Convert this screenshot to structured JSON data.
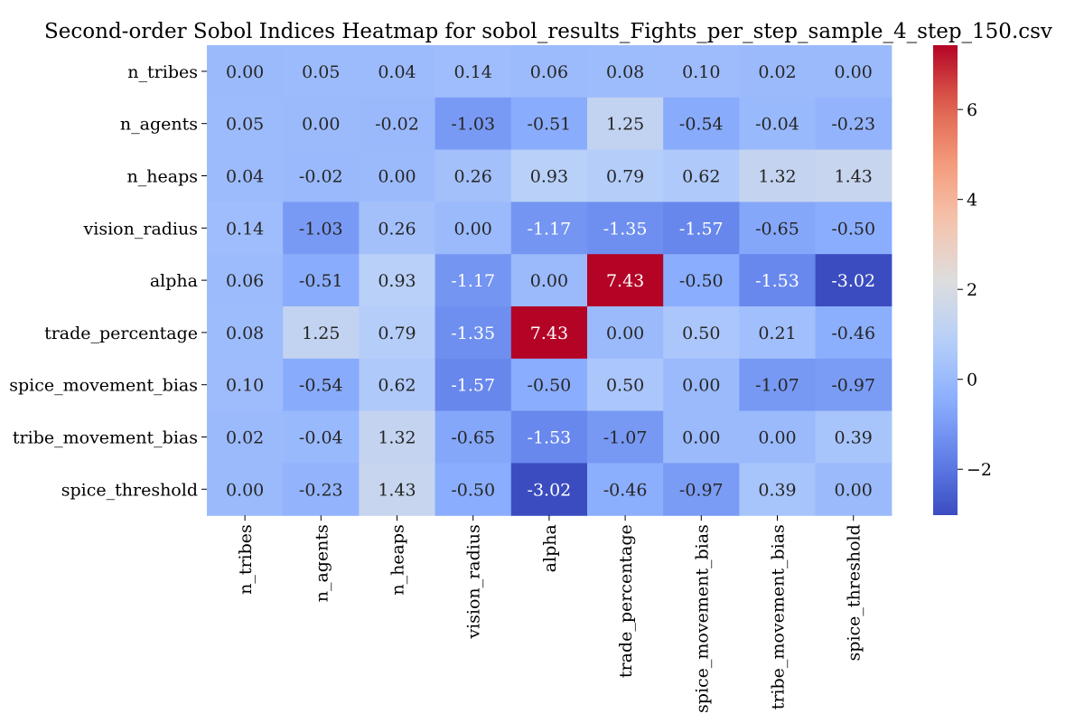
{
  "chart_data": {
    "type": "heatmap",
    "title": "Second-order Sobol Indices Heatmap for sobol_results_Fights_per_step_sample_4_step_150.csv",
    "row_labels": [
      "n_tribes",
      "n_agents",
      "n_heaps",
      "vision_radius",
      "alpha",
      "trade_percentage",
      "spice_movement_bias",
      "tribe_movement_bias",
      "spice_threshold"
    ],
    "col_labels": [
      "n_tribes",
      "n_agents",
      "n_heaps",
      "vision_radius",
      "alpha",
      "trade_percentage",
      "spice_movement_bias",
      "tribe_movement_bias",
      "spice_threshold"
    ],
    "values": [
      [
        0.0,
        0.05,
        0.04,
        0.14,
        0.06,
        0.08,
        0.1,
        0.02,
        0.0
      ],
      [
        0.05,
        0.0,
        -0.02,
        -1.03,
        -0.51,
        1.25,
        -0.54,
        -0.04,
        -0.23
      ],
      [
        0.04,
        -0.02,
        0.0,
        0.26,
        0.93,
        0.79,
        0.62,
        1.32,
        1.43
      ],
      [
        0.14,
        -1.03,
        0.26,
        0.0,
        -1.17,
        -1.35,
        -1.57,
        -0.65,
        -0.5
      ],
      [
        0.06,
        -0.51,
        0.93,
        -1.17,
        0.0,
        7.43,
        -0.5,
        -1.53,
        -3.02
      ],
      [
        0.08,
        1.25,
        0.79,
        -1.35,
        7.43,
        0.0,
        0.5,
        0.21,
        -0.46
      ],
      [
        0.1,
        -0.54,
        0.62,
        -1.57,
        -0.5,
        0.5,
        0.0,
        -1.07,
        -0.97
      ],
      [
        0.02,
        -0.04,
        1.32,
        -0.65,
        -1.53,
        -1.07,
        0.0,
        0.0,
        0.39
      ],
      [
        0.0,
        -0.23,
        1.43,
        -0.5,
        -3.02,
        -0.46,
        -0.97,
        0.39,
        0.0
      ]
    ],
    "value_format": "2 decimals",
    "colormap": "coolwarm",
    "vmin": -3.02,
    "vmax": 7.43,
    "colorbar": {
      "ticks": [
        -2,
        0,
        2,
        4,
        6
      ],
      "tick_labels": [
        "−2",
        "0",
        "2",
        "4",
        "6"
      ]
    },
    "grid": false,
    "legend": "colorbar right"
  }
}
